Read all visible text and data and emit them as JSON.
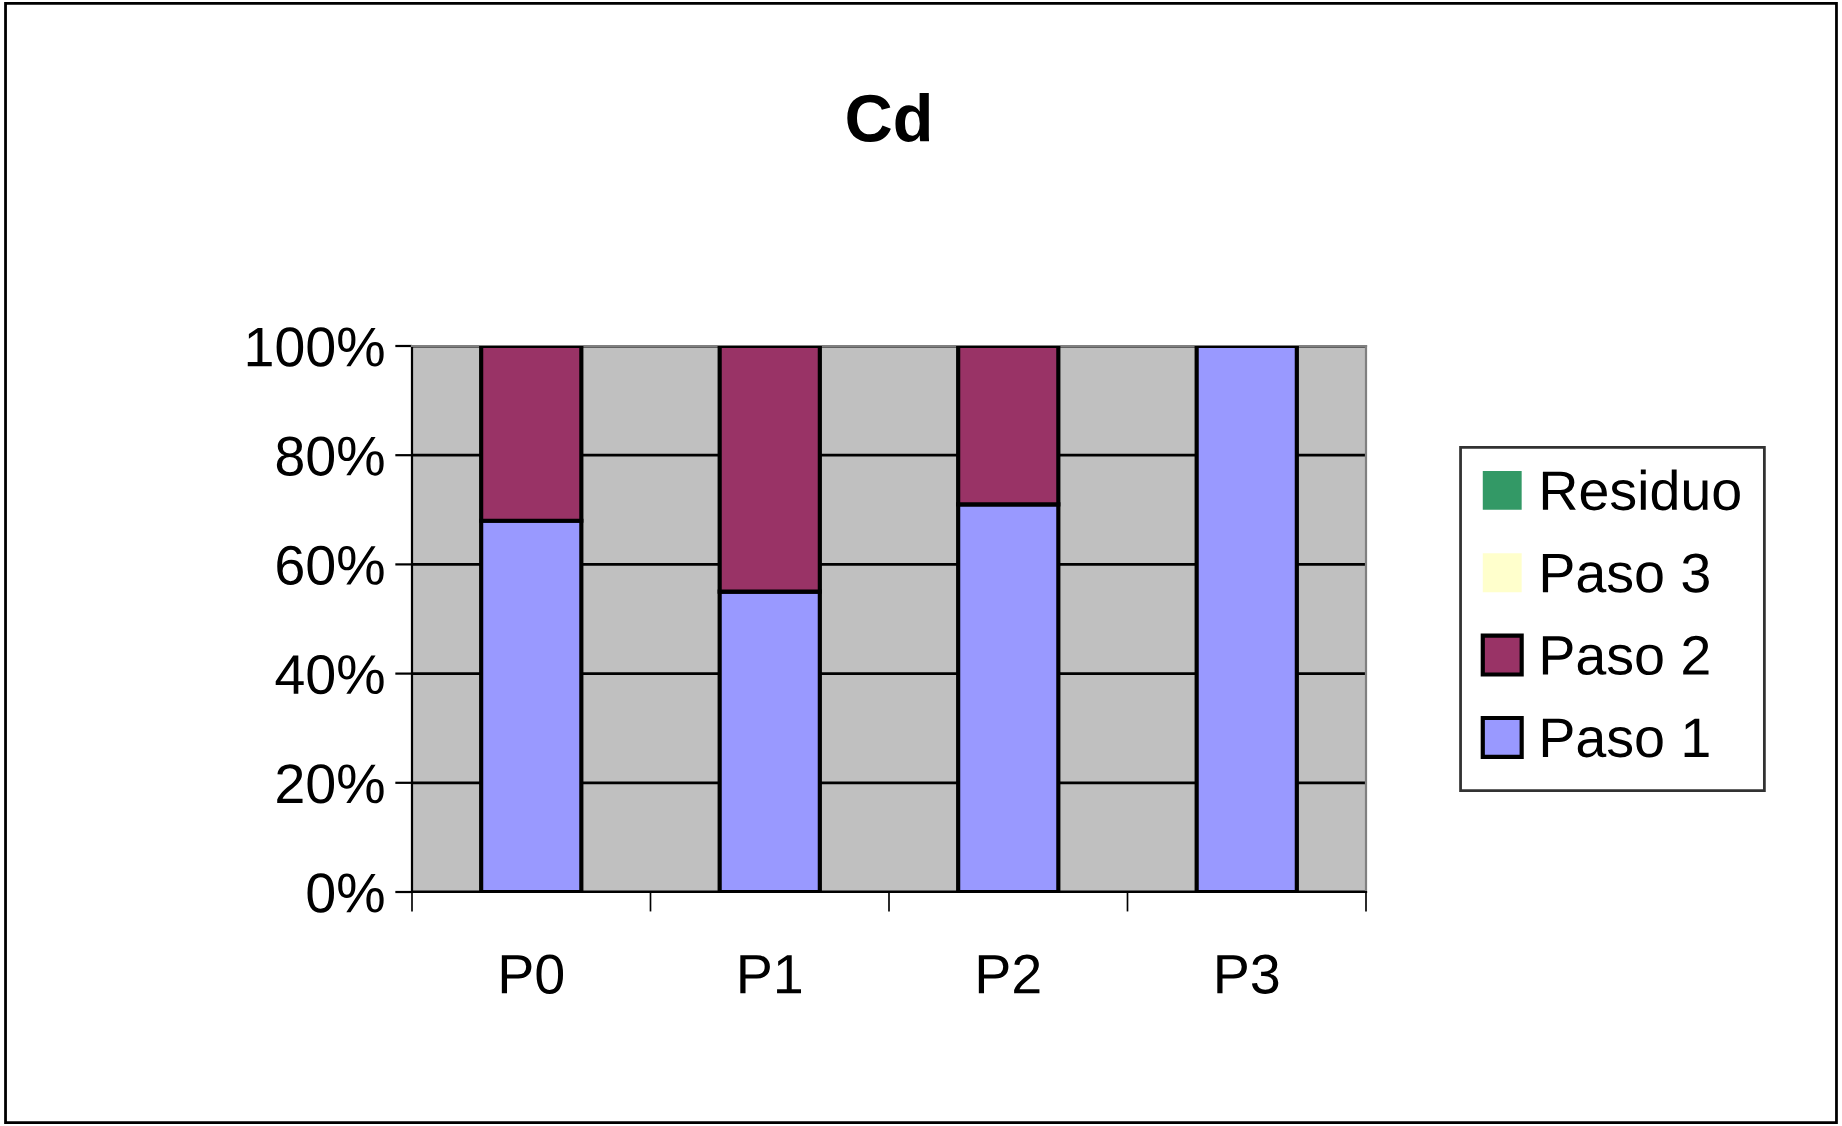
{
  "chart_data": {
    "type": "bar",
    "title": "Cd",
    "stacked": true,
    "categories": [
      "P0",
      "P1",
      "P2",
      "P3"
    ],
    "series": [
      {
        "name": "Paso 1",
        "color": "#9999ff",
        "values": [
          68,
          55,
          71,
          100
        ]
      },
      {
        "name": "Paso 2",
        "color": "#993366",
        "values": [
          32,
          45,
          29,
          0
        ]
      },
      {
        "name": "Paso 3",
        "color": "#ffffcc",
        "values": [
          0,
          0,
          0,
          0
        ]
      },
      {
        "name": "Residuo",
        "color": "#339966",
        "values": [
          0,
          0,
          0,
          0
        ]
      }
    ],
    "ylim": [
      0,
      100
    ],
    "yticks": [
      {
        "value": 0,
        "label": "0%"
      },
      {
        "value": 20,
        "label": "20%"
      },
      {
        "value": 40,
        "label": "40%"
      },
      {
        "value": 60,
        "label": "60%"
      },
      {
        "value": 80,
        "label": "80%"
      },
      {
        "value": 100,
        "label": "100%"
      }
    ],
    "grid": "y",
    "legend": "right"
  }
}
